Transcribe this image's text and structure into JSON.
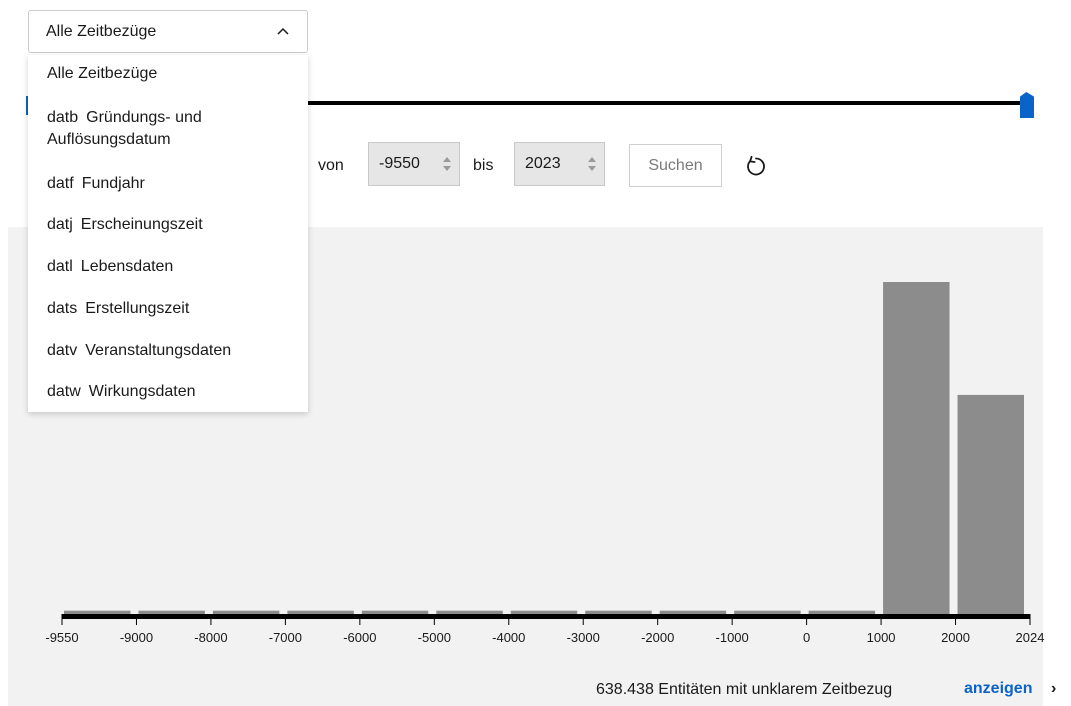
{
  "filter": {
    "selected": "Alle Zeitbezüge",
    "options": [
      {
        "code": "",
        "label": "Alle Zeitbezüge"
      },
      {
        "code": "datb",
        "label": "Gründungs- und",
        "label2": "Auflösungsdatum"
      },
      {
        "code": "datf",
        "label": "Fundjahr"
      },
      {
        "code": "datj",
        "label": "Erscheinungszeit"
      },
      {
        "code": "datl",
        "label": "Lebensdaten"
      },
      {
        "code": "dats",
        "label": "Erstellungszeit"
      },
      {
        "code": "datv",
        "label": "Veranstaltungsdaten"
      },
      {
        "code": "datw",
        "label": "Wirkungsdaten"
      }
    ]
  },
  "range": {
    "from_label": "von",
    "from_value": "-9550",
    "to_label": "bis",
    "to_value": "2023",
    "search_label": "Suchen"
  },
  "icons": {
    "select_chevron": "chevron-up-icon",
    "reset": "reset-icon",
    "link_arrow": "chevron-right-icon"
  },
  "colors": {
    "accent": "#0a63c8",
    "bar": "#8c8c8c",
    "panel": "#f2f2f2"
  },
  "chart_data": {
    "type": "bar",
    "title": "",
    "xlabel": "",
    "ylabel": "",
    "tick_labels": [
      "-9550",
      "-9000",
      "-8000",
      "-7000",
      "-6000",
      "-5000",
      "-4000",
      "-3000",
      "-2000",
      "-1000",
      "0",
      "1000",
      "2000",
      "2024"
    ],
    "bins": [
      {
        "start": -9550,
        "end": -9000
      },
      {
        "start": -9000,
        "end": -8000
      },
      {
        "start": -8000,
        "end": -7000
      },
      {
        "start": -7000,
        "end": -6000
      },
      {
        "start": -6000,
        "end": -5000
      },
      {
        "start": -5000,
        "end": -4000
      },
      {
        "start": -4000,
        "end": -3000
      },
      {
        "start": -3000,
        "end": -2000
      },
      {
        "start": -2000,
        "end": -1000
      },
      {
        "start": -1000,
        "end": 0
      },
      {
        "start": 0,
        "end": 1000
      },
      {
        "start": 1000,
        "end": 2000
      },
      {
        "start": 2000,
        "end": 2024
      }
    ],
    "values": [
      0.01,
      0.01,
      0.01,
      0.01,
      0.01,
      0.01,
      0.01,
      0.01,
      0.01,
      0.01,
      0.01,
      1.0,
      0.66
    ],
    "value_scale": "relative to the tallest bar",
    "grid": false
  },
  "footer": {
    "text": "638.438 Entitäten mit unklarem Zeitbezug",
    "link": "anzeigen",
    "arrow": "›"
  }
}
